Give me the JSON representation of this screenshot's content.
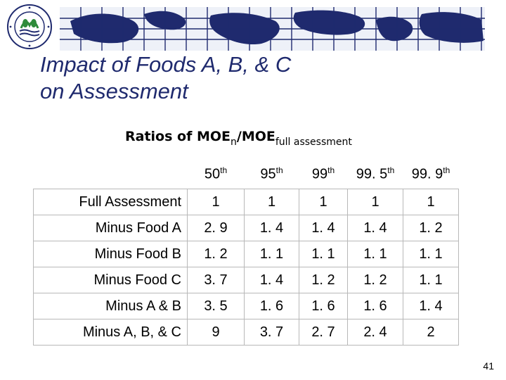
{
  "header": {
    "logo_icon": "epa-seal-icon",
    "map_icon": "world-map-grid-icon",
    "accent_color": "#1f2a6e"
  },
  "slide": {
    "title_line1": "Impact of  Foods A, B, & C",
    "title_line2": "on Assessment",
    "ratio_main": "Ratios of MOE",
    "ratio_sub_n": "n",
    "ratio_mid": "/MOE",
    "ratio_sub_full": "full assessment",
    "page_number": "41"
  },
  "table": {
    "columns": [
      {
        "num": "50",
        "sup": "th"
      },
      {
        "num": "95",
        "sup": "th"
      },
      {
        "num": "99",
        "sup": "th"
      },
      {
        "num": "99. 5",
        "sup": "th"
      },
      {
        "num": "99. 9",
        "sup": "th"
      }
    ],
    "rows": [
      {
        "label": "Full Assessment",
        "values": [
          "1",
          "1",
          "1",
          "1",
          "1"
        ]
      },
      {
        "label": "Minus Food A",
        "values": [
          "2. 9",
          "1. 4",
          "1. 4",
          "1. 4",
          "1. 2"
        ]
      },
      {
        "label": "Minus Food B",
        "values": [
          "1. 2",
          "1. 1",
          "1. 1",
          "1. 1",
          "1. 1"
        ]
      },
      {
        "label": "Minus Food C",
        "values": [
          "3. 7",
          "1. 4",
          "1. 2",
          "1. 2",
          "1. 1"
        ]
      },
      {
        "label": "Minus A & B",
        "values": [
          "3. 5",
          "1. 6",
          "1. 6",
          "1. 6",
          "1. 4"
        ]
      },
      {
        "label": "Minus A, B, & C",
        "values": [
          "9",
          "3. 7",
          "2. 7",
          "2. 4",
          "2"
        ]
      }
    ]
  }
}
